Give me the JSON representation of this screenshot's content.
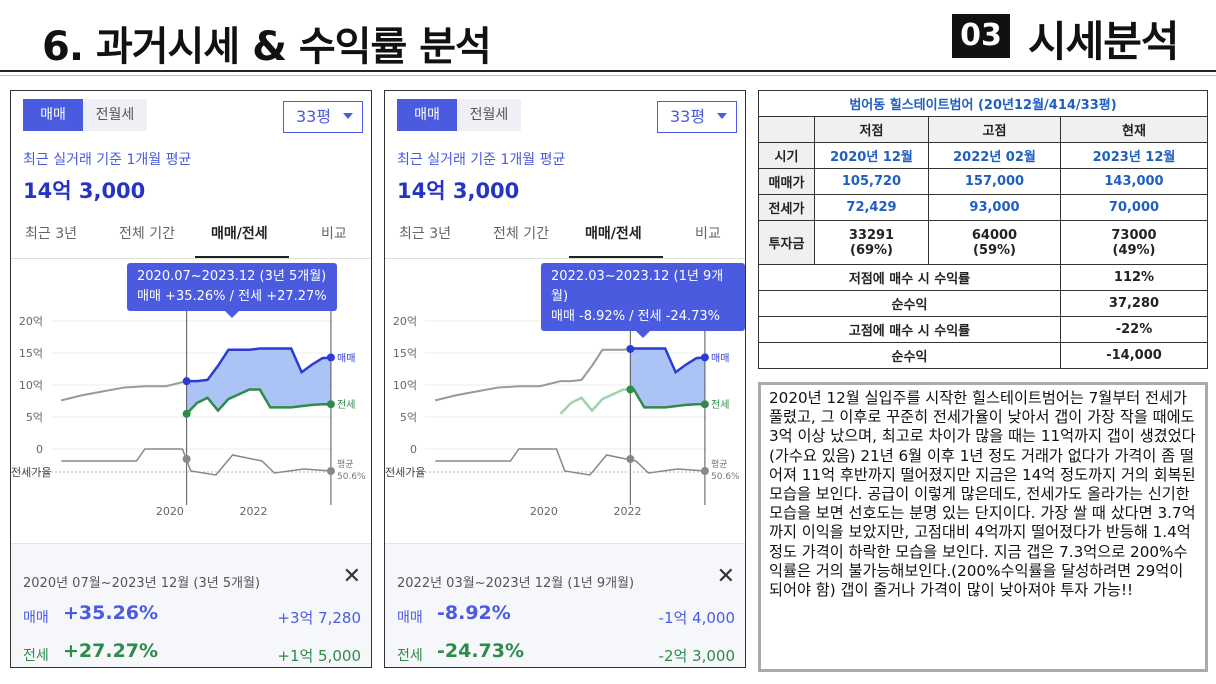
{
  "header": {
    "title": "6. 과거시세 & 수익률 분석",
    "badge": "03",
    "section": "시세분석"
  },
  "panels": [
    {
      "toggle_on": "매매",
      "toggle_off": "전월세",
      "select": "33평",
      "subtitle": "최근 실거래 기준 1개월 평균",
      "price": "14억 3,000",
      "tabs": [
        "최근 3년",
        "전체 기간",
        "매매/전세",
        "비교"
      ],
      "tooltip_line1": "2020.07~2023.12 (3년 5개월)",
      "tooltip_line2": "매매 +35.26%  /  전세 +27.27%",
      "footer": {
        "range": "2020년 07월~2023년 12월 (3년 5개월)",
        "label1": "매매",
        "value1": "+35.26%",
        "right1": "+3억 7,280",
        "label2": "전세",
        "value2": "+27.27%",
        "right2": "+1억 5,000"
      }
    },
    {
      "toggle_on": "매매",
      "toggle_off": "전월세",
      "select": "33평",
      "subtitle": "최근 실거래 기준 1개월 평균",
      "price": "14억 3,000",
      "tabs": [
        "최근 3년",
        "전체 기간",
        "매매/전세",
        "비교"
      ],
      "tooltip_line1": "2022.03~2023.12 (1년 9개월)",
      "tooltip_line2": "매매 -8.92%  /  전세 -24.73%",
      "footer": {
        "range": "2022년 03월~2023년 12월 (1년 9개월)",
        "label1": "매매",
        "value1": "-8.92%",
        "right1": "-1억 4,000",
        "label2": "전세",
        "value2": "-24.73%",
        "right2": "-2억 3,000"
      }
    }
  ],
  "chart_common": {
    "y_ticks": [
      "20억",
      "15억",
      "10억",
      "5억",
      "0"
    ],
    "x_ticks": [
      "2020",
      "2022"
    ],
    "label_sale": "매매",
    "label_jeonse": "전세",
    "label_ratio": "전세가율",
    "label_avg": "평균",
    "avg_value": "50.6%"
  },
  "chart_data": [
    {
      "type": "line",
      "x": [
        2017.5,
        2018.0,
        2018.5,
        2019.0,
        2019.5,
        2020.0,
        2020.5,
        2020.75,
        2021.0,
        2021.25,
        2021.5,
        2022.0,
        2022.25,
        2022.5,
        2023.0,
        2023.25,
        2023.5,
        2023.75,
        2023.95
      ],
      "series": [
        {
          "name": "매매",
          "values": [
            7.6,
            8.4,
            9.0,
            9.6,
            9.8,
            9.8,
            10.6,
            10.6,
            10.8,
            13.0,
            15.5,
            15.5,
            15.7,
            15.7,
            15.7,
            12.0,
            13.2,
            14.2,
            14.3
          ]
        },
        {
          "name": "전세",
          "values": [
            null,
            null,
            null,
            null,
            null,
            null,
            5.5,
            7.2,
            8.0,
            6.0,
            7.8,
            9.3,
            9.3,
            6.5,
            6.5,
            6.7,
            6.9,
            7.0,
            7.0
          ]
        }
      ],
      "ylim": [
        0,
        20
      ],
      "highlight_range": [
        "2020.07",
        "2023.12"
      ]
    },
    {
      "type": "line",
      "x": [
        2017.5,
        2018.0,
        2018.5,
        2019.0,
        2019.5,
        2020.0,
        2020.5,
        2020.75,
        2021.0,
        2021.25,
        2021.5,
        2022.0,
        2022.25,
        2022.5,
        2023.0,
        2023.25,
        2023.5,
        2023.75,
        2023.95
      ],
      "series": [
        {
          "name": "매매",
          "values": [
            7.6,
            8.4,
            9.0,
            9.6,
            9.8,
            9.8,
            10.6,
            10.6,
            10.8,
            13.0,
            15.5,
            15.5,
            15.7,
            15.7,
            15.7,
            12.0,
            13.2,
            14.2,
            14.3
          ]
        },
        {
          "name": "전세",
          "values": [
            null,
            null,
            null,
            null,
            null,
            null,
            5.5,
            7.2,
            8.0,
            6.0,
            7.8,
            9.3,
            9.3,
            6.5,
            6.5,
            6.7,
            6.9,
            7.0,
            7.0
          ]
        }
      ],
      "ylim": [
        0,
        20
      ],
      "highlight_range": [
        "2022.03",
        "2023.12"
      ]
    }
  ],
  "table": {
    "caption": "범어동 힐스테이트범어 (20년12월/414/33평)",
    "headers": [
      "",
      "저점",
      "고점",
      "현재"
    ],
    "rows": [
      {
        "label": "시기",
        "values": [
          "2020년 12월",
          "2022년 02월",
          "2023년 12월"
        ]
      },
      {
        "label": "매매가",
        "values": [
          "105,720",
          "157,000",
          "143,000"
        ]
      },
      {
        "label": "전세가",
        "values": [
          "72,429",
          "93,000",
          "70,000"
        ]
      },
      {
        "label": "투자금",
        "values": [
          "33291",
          "64000",
          "73000"
        ],
        "sub": [
          "(69%)",
          "(59%)",
          "(49%)"
        ]
      }
    ],
    "summary": [
      {
        "label": "저점에 매수 시 수익률",
        "value": "112%"
      },
      {
        "label": "순수익",
        "value": "37,280"
      },
      {
        "label": "고점에 매수 시 수익률",
        "value": "-22%"
      },
      {
        "label": "순수익",
        "value": "-14,000"
      }
    ]
  },
  "description": "2020년 12월 실입주를 시작한 힐스테이트범어는 7월부터 전세가 풀렸고, 그 이후로 꾸준히 전세가율이 낮아서 갭이 가장 작을 때에도 3억 이상 났으며, 최고로 차이가 많을 때는 11억까지 갭이 생겼었다(가수요 있음) 21년 6월 이후 1년 정도 거래가 없다가 가격이 좀 떨어져 11억 후반까지 떨어졌지만 지금은 14억 정도까지 거의 회복된 모습을 보인다. 공급이 이렇게 많은데도, 전세가도 올라가는 신기한 모습을 보면 선호도는 분명 있는 단지이다. 가장 쌀 때 샀다면 3.7억까지 이익을 보았지만, 고점대비 4억까지 떨어졌다가 반등해 1.4억 정도 가격이 하락한 모습을 보인다. 지금 갭은 7.3억으로 200%수익률은 거의 불가능해보인다.(200%수익률을 달성하려면 29억이 되어야 함) 갭이 줄거나 가격이 많이 낮아져야 투자 가능!!"
}
